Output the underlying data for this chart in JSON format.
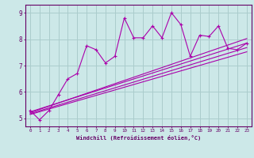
{
  "background_color": "#cce8e8",
  "line_color": "#aa00aa",
  "grid_color": "#aacccc",
  "xlabel": "Windchill (Refroidissement éolien,°C)",
  "ylabel_ticks": [
    5,
    6,
    7,
    8,
    9
  ],
  "xticks": [
    0,
    1,
    2,
    3,
    4,
    5,
    6,
    7,
    8,
    9,
    10,
    11,
    12,
    13,
    14,
    15,
    16,
    17,
    18,
    19,
    20,
    21,
    22,
    23
  ],
  "xlim": [
    -0.5,
    23.5
  ],
  "ylim": [
    4.7,
    9.3
  ],
  "series1": {
    "x": [
      0,
      1,
      2,
      3,
      4,
      5,
      6,
      7,
      8,
      9,
      10,
      11,
      12,
      13,
      14,
      15,
      16,
      17,
      18,
      19,
      20,
      21,
      22,
      23
    ],
    "y": [
      5.3,
      4.95,
      5.3,
      5.9,
      6.5,
      6.7,
      7.75,
      7.6,
      7.1,
      7.35,
      8.8,
      8.05,
      8.05,
      8.5,
      8.05,
      9.0,
      8.55,
      7.35,
      8.15,
      8.1,
      8.5,
      7.65,
      7.6,
      7.85
    ]
  },
  "series2": {
    "x": [
      0,
      23
    ],
    "y": [
      5.25,
      7.85
    ]
  },
  "series3": {
    "x": [
      0,
      23
    ],
    "y": [
      5.22,
      8.02
    ]
  },
  "series4": {
    "x": [
      0,
      23
    ],
    "y": [
      5.18,
      7.68
    ]
  },
  "series5": {
    "x": [
      0,
      23
    ],
    "y": [
      5.15,
      7.52
    ]
  }
}
